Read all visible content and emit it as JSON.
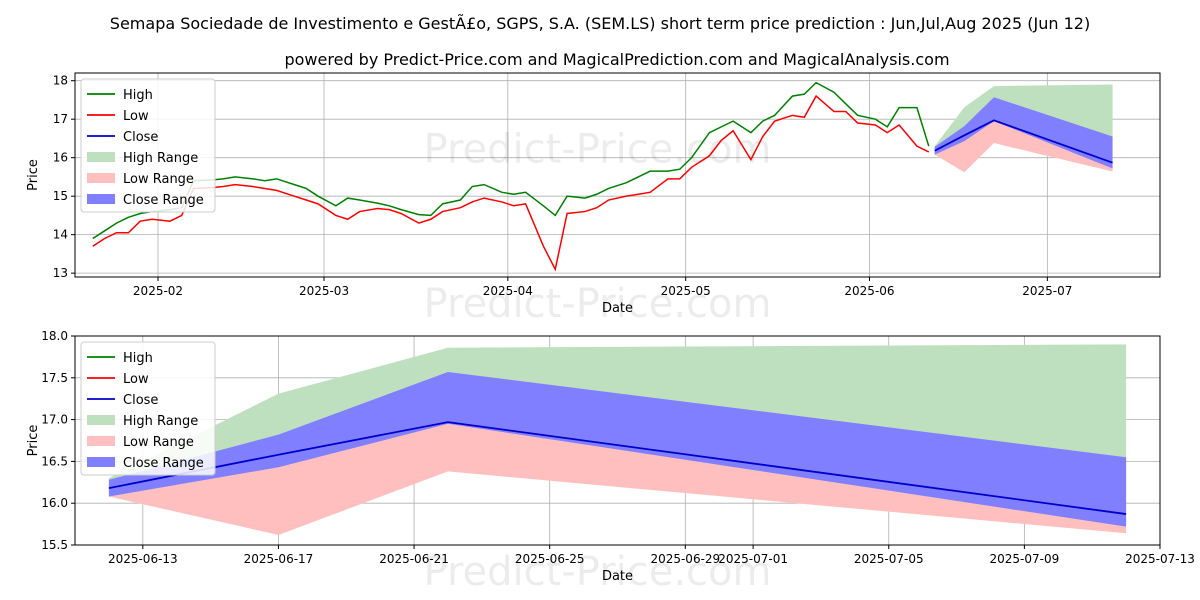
{
  "title": "Semapa Sociedade de Investimento e GestÃ£o, SGPS, S.A. (SEM.LS) short term price prediction : Jun,Jul,Aug 2025 (Jun 12)",
  "subtitle": "powered by Predict-Price.com and MagicalPrediction.com and MagicalAnalysis.com",
  "watermark": "Predict-Price.com",
  "colors": {
    "high": "#008000",
    "low": "#ff0000",
    "close": "#0000cc",
    "high_range": "#bfe0bf",
    "low_range": "#ffbfbf",
    "close_range": "#7f7fff"
  },
  "chart_data": [
    {
      "type": "line",
      "xlabel": "Date",
      "ylabel": "Price",
      "x_domain": [
        "2025-01-18",
        "2025-07-20"
      ],
      "ylim": [
        12.9,
        18.2
      ],
      "y_ticks": [
        13,
        14,
        15,
        16,
        17,
        18
      ],
      "x_ticks": [
        {
          "date": "2025-02-01",
          "label": "2025-02"
        },
        {
          "date": "2025-03-01",
          "label": "2025-03"
        },
        {
          "date": "2025-04-01",
          "label": "2025-04"
        },
        {
          "date": "2025-05-01",
          "label": "2025-05"
        },
        {
          "date": "2025-06-01",
          "label": "2025-06"
        },
        {
          "date": "2025-07-01",
          "label": "2025-07"
        }
      ],
      "legend": {
        "position": "top-left",
        "labels": {
          "high": "High",
          "low": "Low",
          "close": "Close",
          "high_range": "High Range",
          "low_range": "Low Range",
          "close_range": "Close Range"
        }
      },
      "history": {
        "dates": [
          "2025-01-21",
          "2025-01-23",
          "2025-01-25",
          "2025-01-27",
          "2025-01-29",
          "2025-01-31",
          "2025-02-03",
          "2025-02-05",
          "2025-02-07",
          "2025-02-10",
          "2025-02-12",
          "2025-02-14",
          "2025-02-17",
          "2025-02-19",
          "2025-02-21",
          "2025-02-24",
          "2025-02-26",
          "2025-02-28",
          "2025-03-03",
          "2025-03-05",
          "2025-03-07",
          "2025-03-10",
          "2025-03-12",
          "2025-03-14",
          "2025-03-17",
          "2025-03-19",
          "2025-03-21",
          "2025-03-24",
          "2025-03-26",
          "2025-03-28",
          "2025-03-31",
          "2025-04-02",
          "2025-04-04",
          "2025-04-07",
          "2025-04-09",
          "2025-04-11",
          "2025-04-14",
          "2025-04-16",
          "2025-04-18",
          "2025-04-21",
          "2025-04-23",
          "2025-04-25",
          "2025-04-28",
          "2025-04-30",
          "2025-05-02",
          "2025-05-05",
          "2025-05-07",
          "2025-05-09",
          "2025-05-12",
          "2025-05-14",
          "2025-05-16",
          "2025-05-19",
          "2025-05-21",
          "2025-05-23",
          "2025-05-26",
          "2025-05-28",
          "2025-05-30",
          "2025-06-02",
          "2025-06-04",
          "2025-06-06",
          "2025-06-09",
          "2025-06-11"
        ],
        "high": [
          13.9,
          14.1,
          14.3,
          14.45,
          14.55,
          14.6,
          14.65,
          14.7,
          15.4,
          15.42,
          15.45,
          15.5,
          15.45,
          15.4,
          15.45,
          15.3,
          15.2,
          15.0,
          14.75,
          14.95,
          14.9,
          14.82,
          14.75,
          14.65,
          14.52,
          14.5,
          14.8,
          14.9,
          15.25,
          15.3,
          15.1,
          15.05,
          15.1,
          14.75,
          14.5,
          15.0,
          14.95,
          15.05,
          15.2,
          15.35,
          15.5,
          15.65,
          15.65,
          15.7,
          16.0,
          16.65,
          16.8,
          16.95,
          16.65,
          16.95,
          17.1,
          17.6,
          17.65,
          17.95,
          17.7,
          17.4,
          17.1,
          17.0,
          16.8,
          17.3,
          17.3,
          16.3
        ],
        "low": [
          13.7,
          13.9,
          14.05,
          14.05,
          14.35,
          14.4,
          14.35,
          14.5,
          15.2,
          15.22,
          15.25,
          15.3,
          15.25,
          15.2,
          15.15,
          15.0,
          14.9,
          14.8,
          14.5,
          14.4,
          14.6,
          14.68,
          14.65,
          14.55,
          14.3,
          14.4,
          14.6,
          14.7,
          14.85,
          14.95,
          14.85,
          14.75,
          14.8,
          13.7,
          13.1,
          14.55,
          14.6,
          14.7,
          14.9,
          15.0,
          15.05,
          15.1,
          15.45,
          15.45,
          15.75,
          16.05,
          16.45,
          16.7,
          15.95,
          16.55,
          16.95,
          17.1,
          17.05,
          17.6,
          17.2,
          17.2,
          16.9,
          16.85,
          16.65,
          16.85,
          16.3,
          16.15
        ]
      },
      "forecast": {
        "dates": [
          "2025-06-12",
          "2025-06-17",
          "2025-06-22",
          "2025-07-12"
        ],
        "close": [
          16.18,
          16.58,
          16.97,
          15.87
        ],
        "high_range_upper": [
          16.3,
          17.31,
          17.86,
          17.9
        ],
        "high_range_lower": [
          16.15,
          16.75,
          16.96,
          16.55
        ],
        "close_range_upper": [
          16.28,
          16.82,
          17.57,
          16.55
        ],
        "close_range_lower": [
          16.08,
          16.43,
          16.95,
          15.72
        ],
        "low_range_upper": [
          16.22,
          16.47,
          16.97,
          15.85
        ],
        "low_range_lower": [
          16.08,
          15.62,
          16.38,
          15.64
        ]
      }
    },
    {
      "type": "line",
      "xlabel": "Date",
      "ylabel": "Price",
      "x_domain": [
        "2025-06-11",
        "2025-07-13"
      ],
      "ylim": [
        15.5,
        18.0
      ],
      "y_ticks": [
        15.5,
        16.0,
        16.5,
        17.0,
        17.5,
        18.0
      ],
      "y_tick_labels": [
        "15.5",
        "16.0",
        "16.5",
        "17.0",
        "17.5",
        "18.0"
      ],
      "x_ticks": [
        {
          "date": "2025-06-13",
          "label": "2025-06-13"
        },
        {
          "date": "2025-06-17",
          "label": "2025-06-17"
        },
        {
          "date": "2025-06-21",
          "label": "2025-06-21"
        },
        {
          "date": "2025-06-25",
          "label": "2025-06-25"
        },
        {
          "date": "2025-06-29",
          "label": "2025-06-29"
        },
        {
          "date": "2025-07-01",
          "label": "2025-07-01"
        },
        {
          "date": "2025-07-05",
          "label": "2025-07-05"
        },
        {
          "date": "2025-07-09",
          "label": "2025-07-09"
        },
        {
          "date": "2025-07-13",
          "label": "2025-07-13"
        }
      ],
      "legend": {
        "position": "top-left",
        "labels": {
          "high": "High",
          "low": "Low",
          "close": "Close",
          "high_range": "High Range",
          "low_range": "Low Range",
          "close_range": "Close Range"
        }
      }
    }
  ]
}
